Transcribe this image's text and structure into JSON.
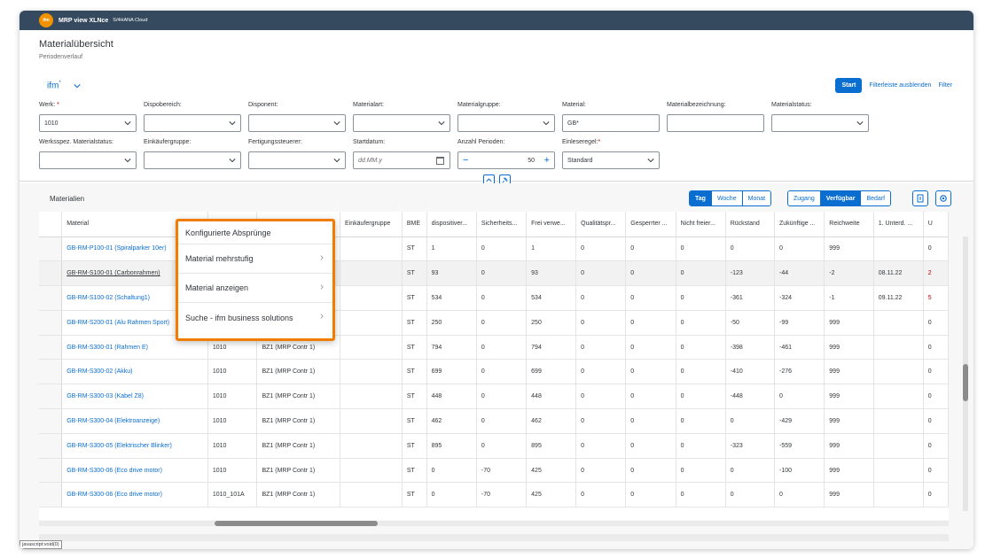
{
  "shell": {
    "app_name": "MRP view XLNce",
    "product": "S/4HANA Cloud",
    "logo": "ifm"
  },
  "header": {
    "title": "Materialübersicht",
    "subtitle": "Periodenverlauf",
    "variant": "ifm",
    "variant_mark": "*",
    "start_label": "Start",
    "hide_filterbar_label": "Filterleiste ausblenden",
    "filter_label": "Filter"
  },
  "filters": {
    "werk": {
      "label": "Werk:",
      "value": "1010"
    },
    "dispobereich": {
      "label": "Dispobereich:",
      "value": ""
    },
    "disponent": {
      "label": "Disponent:",
      "value": ""
    },
    "materialart": {
      "label": "Materialart:",
      "value": ""
    },
    "materialgruppe": {
      "label": "Materialgruppe:",
      "value": ""
    },
    "material": {
      "label": "Material:",
      "value": "GB*"
    },
    "materialbezeichnung": {
      "label": "Materialbezeichnung:",
      "value": ""
    },
    "materialstatus": {
      "label": "Materialstatus:",
      "value": ""
    },
    "werksspez": {
      "label": "Werksspez. Materialstatus:",
      "value": ""
    },
    "einkaeufergruppe": {
      "label": "Einkäufergruppe:",
      "value": ""
    },
    "fertigungssteuerer": {
      "label": "Fertigungssteuerer:",
      "value": ""
    },
    "startdatum": {
      "label": "Startdatum:",
      "placeholder": "dd.MM.y"
    },
    "anzahl_perioden": {
      "label": "Anzahl Perioden:",
      "value": "50"
    },
    "einleseregel": {
      "label": "Einleseregel:",
      "value": "Standard"
    }
  },
  "table": {
    "title": "Materialien",
    "period_buttons": [
      "Tag",
      "Woche",
      "Monat"
    ],
    "period_selected": "Tag",
    "view_buttons": [
      "Zugang",
      "Verfügbar",
      "Bedarf"
    ],
    "view_selected": "Verfügbar",
    "columns": [
      "Material",
      "",
      "",
      "Einkäufergruppe",
      "BME",
      "dispositiver...",
      "Sicherheits...",
      "Frei verwe...",
      "Qualitätspr...",
      "Gesperrter ...",
      "Nicht freier...",
      "Rückstand",
      "Zukünftige ...",
      "Reichweite",
      "1. Unterd. ...",
      "U"
    ],
    "rows": [
      [
        "GB-RM-P100-01 (Spiralparker 10er)",
        "",
        "",
        "",
        "ST",
        "1",
        "0",
        "1",
        "0",
        "0",
        "0",
        "0",
        "0",
        "999",
        "",
        "0"
      ],
      [
        "GB-RM-S100-01 (Carbonrahmen)",
        "",
        "",
        "",
        "ST",
        "93",
        "0",
        "93",
        "0",
        "0",
        "0",
        "-123",
        "-44",
        "-2",
        "08.11.22",
        "2"
      ],
      [
        "GB-RM-S100-02 (Schaltung1)",
        "",
        "",
        "",
        "ST",
        "534",
        "0",
        "534",
        "0",
        "0",
        "0",
        "-361",
        "-324",
        "-1",
        "09.11.22",
        "5"
      ],
      [
        "GB-RM-S200-01 (Alu Rahmen Sport)",
        "",
        "",
        "",
        "ST",
        "250",
        "0",
        "250",
        "0",
        "0",
        "0",
        "-50",
        "-99",
        "999",
        "",
        "0"
      ],
      [
        "GB-RM-S300-01 (Rahmen E)",
        "1010",
        "BZ1 (MRP Contr 1)",
        "",
        "ST",
        "794",
        "0",
        "794",
        "0",
        "0",
        "0",
        "-398",
        "-461",
        "999",
        "",
        "0"
      ],
      [
        "GB-RM-S300-02 (Akku)",
        "1010",
        "BZ1 (MRP Contr 1)",
        "",
        "ST",
        "699",
        "0",
        "699",
        "0",
        "0",
        "0",
        "-410",
        "-276",
        "999",
        "",
        "0"
      ],
      [
        "GB-RM-S300-03 (Kabel Z8)",
        "1010",
        "BZ1 (MRP Contr 1)",
        "",
        "ST",
        "448",
        "0",
        "448",
        "0",
        "0",
        "0",
        "-448",
        "0",
        "999",
        "",
        "0"
      ],
      [
        "GB-RM-S300-04 (Elektroanzeige)",
        "1010",
        "BZ1 (MRP Contr 1)",
        "",
        "ST",
        "462",
        "0",
        "462",
        "0",
        "0",
        "0",
        "0",
        "-429",
        "999",
        "",
        "0"
      ],
      [
        "GB-RM-S300-05 (Elektrischer Blinker)",
        "1010",
        "BZ1 (MRP Contr 1)",
        "",
        "ST",
        "895",
        "0",
        "895",
        "0",
        "0",
        "0",
        "-323",
        "-559",
        "999",
        "",
        "0"
      ],
      [
        "GB-RM-S300-06 (Eco drive motor)",
        "1010",
        "BZ1 (MRP Contr 1)",
        "",
        "ST",
        "0",
        "-70",
        "425",
        "0",
        "0",
        "0",
        "0",
        "-100",
        "999",
        "",
        "0"
      ],
      [
        "GB-RM-S300-06 (Eco drive motor)",
        "1010_101A",
        "BZ1 (MRP Contr 1)",
        "",
        "ST",
        "0",
        "-70",
        "425",
        "0",
        "0",
        "0",
        "0",
        "0",
        "999",
        "",
        "0"
      ]
    ]
  },
  "context_menu": {
    "items": [
      "Konfigurierte Absprünge",
      "Material mehrstufig",
      "Material anzeigen",
      "Suche - ifm business solutions"
    ]
  },
  "status_text": "javascript:void(0)",
  "colors": {
    "accent": "#0a6ed1",
    "shell": "#354a5f",
    "highlight": "#f07d00",
    "negative": "#bb0000"
  }
}
